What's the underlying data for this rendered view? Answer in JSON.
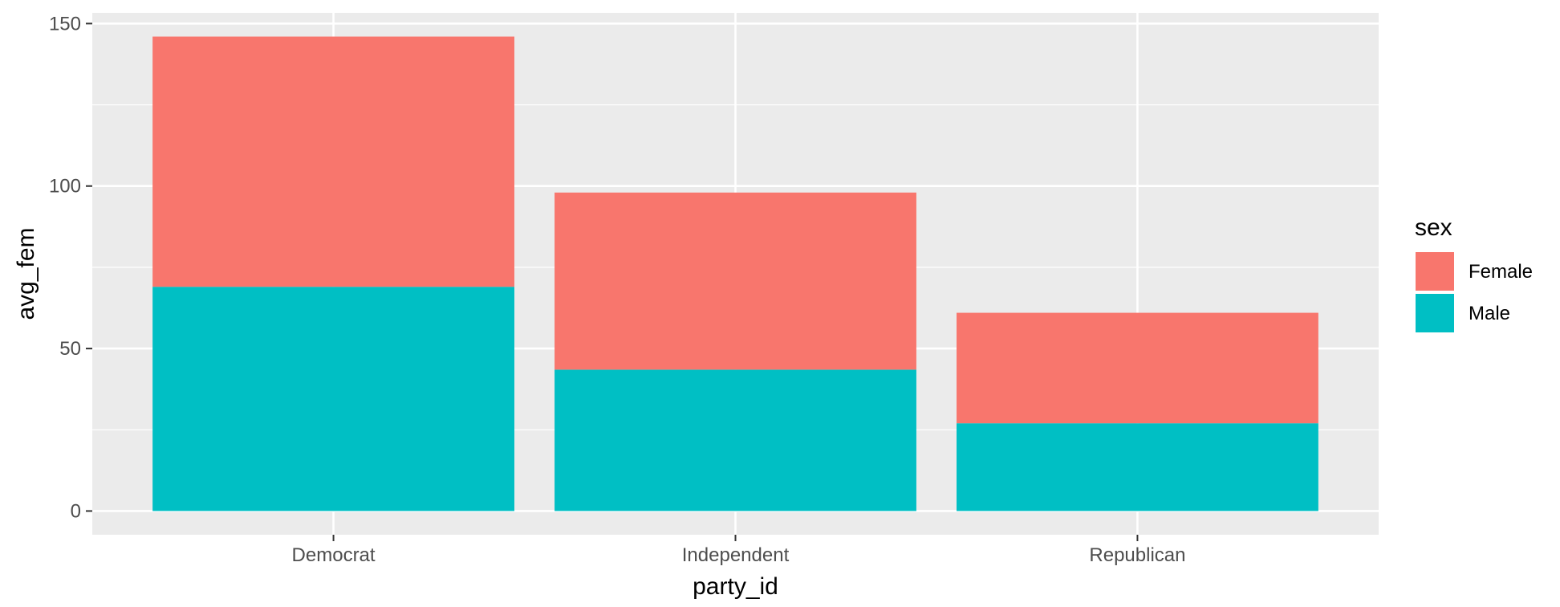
{
  "chart_data": {
    "type": "bar",
    "stacked": true,
    "categories": [
      "Democrat",
      "Independent",
      "Republican"
    ],
    "series": [
      {
        "name": "Female",
        "color": "#F8766D",
        "values": [
          77,
          54.5,
          34
        ]
      },
      {
        "name": "Male",
        "color": "#00BFC4",
        "values": [
          69,
          43.5,
          27
        ]
      }
    ],
    "stack_order_bottom_to_top": [
      "Male",
      "Female"
    ],
    "xlabel": "party_id",
    "ylabel": "avg_fem",
    "ylim": [
      -7.3,
      153.3
    ],
    "yticks": [
      0,
      50,
      100,
      150
    ],
    "legend": {
      "title": "sex",
      "placement": "right"
    },
    "grid": true,
    "panel_background": "#EBEBEB",
    "grid_color": "#FFFFFF"
  }
}
